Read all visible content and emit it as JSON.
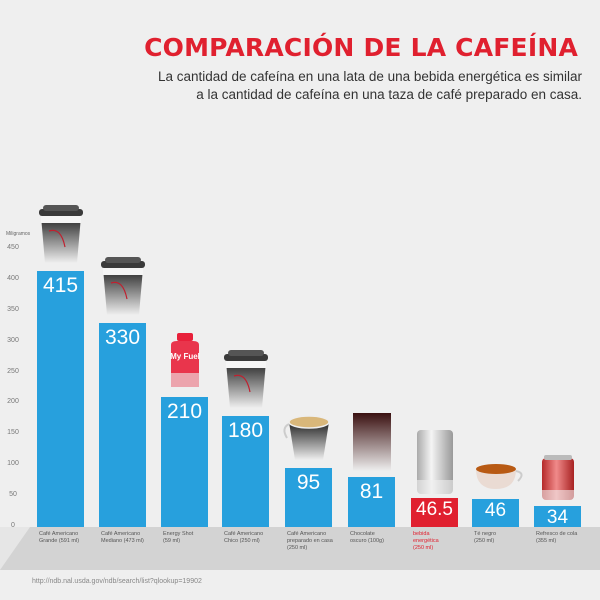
{
  "header": {
    "title": "COMPARACIÓN DE LA CAFEÍNA",
    "subtitle_line1": "La cantidad de cafeína en una lata de una bebida energética es similar",
    "subtitle_line2": "a la cantidad de cafeína en una taza de café preparado en casa."
  },
  "source": "http://ndb.nal.usda.gov/ndb/search/list?qlookup=19902",
  "colors": {
    "bar": "#27a0dd",
    "highlight": "#e0202f",
    "title": "#e0202f"
  },
  "chart_data": {
    "type": "bar",
    "title": "COMPARACIÓN DE LA CAFEÍNA",
    "ylabel": "Miligramos",
    "xlabel": "",
    "ylim": [
      0,
      450
    ],
    "yticks": [
      0,
      50,
      100,
      150,
      200,
      250,
      300,
      350,
      400,
      450
    ],
    "grid": false,
    "categories": [
      "Café Americano Grande (591 ml)",
      "Café Americano Mediano (473 ml)",
      "Energy Shot (59 ml)",
      "Café Americano Chico (250 ml)",
      "Café Americano preparado en casa (250 ml)",
      "Chocolate oscuro (100g)",
      "bebida energética (250 ml)",
      "Té negro (250 ml)",
      "Refresco de cola (355 ml)"
    ],
    "category_lines": [
      [
        "Café Americano",
        "Grande (591 ml)"
      ],
      [
        "Café Americano",
        "Mediano (473 ml)"
      ],
      [
        "Energy Shot",
        "(59 ml)"
      ],
      [
        "Café Americano",
        "Chico (250 ml)"
      ],
      [
        "Café Americano",
        "preparado en casa",
        "(250 ml)"
      ],
      [
        "Chocolate",
        "oscuro (100g)"
      ],
      [
        "bebida",
        "energética",
        "(250 ml)"
      ],
      [
        "Té negro",
        "(250 ml)"
      ],
      [
        "Refresco de cola",
        "(355 ml)"
      ]
    ],
    "values": [
      415,
      330,
      210,
      180,
      95,
      81,
      46.5,
      46,
      34
    ],
    "value_labels": [
      "415",
      "330",
      "210",
      "180",
      "95",
      "81",
      "46.5",
      "46",
      "34"
    ],
    "highlight_index": 6,
    "icons": [
      "coffee-cup-large",
      "coffee-cup-medium",
      "energy-shot-bottle",
      "coffee-cup-small",
      "espresso-mug",
      "dark-chocolate-bar",
      "energy-drink-can",
      "tea-cup",
      "cola-can"
    ],
    "shot_label": "My Fuel"
  }
}
